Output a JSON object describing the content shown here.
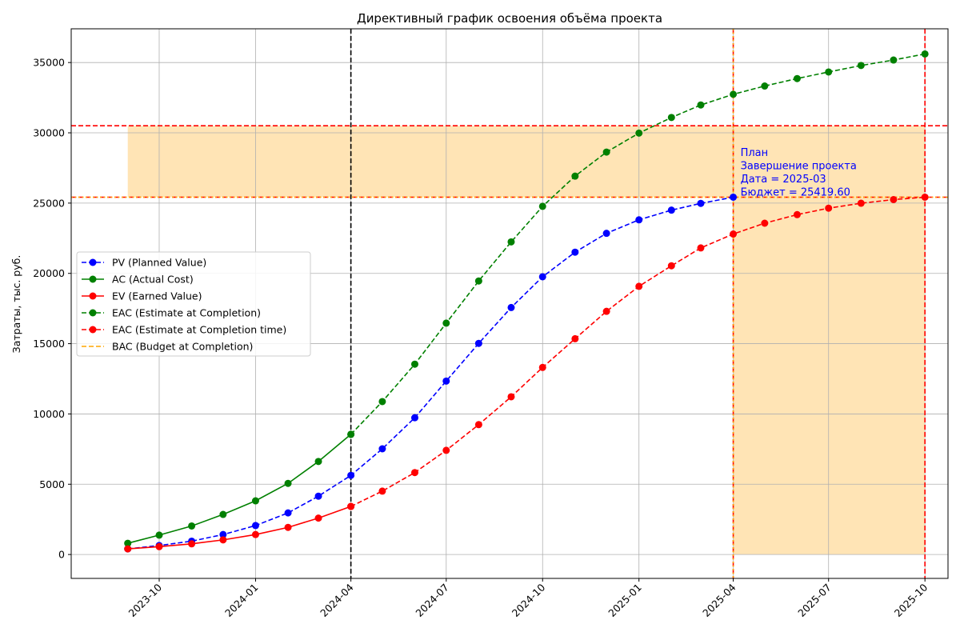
{
  "chart_data": {
    "type": "line",
    "title": "Директивный график освоения объёма проекта",
    "xlabel": "",
    "ylabel": "Затраты, тыс. руб.",
    "x_ticks": [
      "2023-10",
      "2024-01",
      "2024-04",
      "2024-07",
      "2024-10",
      "2025-01",
      "2025-04",
      "2025-07",
      "2025-10"
    ],
    "y_ticks": [
      0,
      5000,
      10000,
      15000,
      20000,
      25000,
      30000,
      35000
    ],
    "xlim": [
      "2023-07-09",
      "2025-10-23"
    ],
    "ylim": [
      -1700,
      37400
    ],
    "grid": true,
    "legend_position": "center-left",
    "series": [
      {
        "name": "PV (Planned Value)",
        "color": "#0000ff",
        "line_style": "dashed",
        "marker": "circle",
        "points": [
          [
            "2023-09",
            400
          ],
          [
            "2023-10",
            640
          ],
          [
            "2023-11",
            950
          ],
          [
            "2023-12",
            1420
          ],
          [
            "2024-01",
            2060
          ],
          [
            "2024-02",
            2960
          ],
          [
            "2024-03",
            4150
          ],
          [
            "2024-04",
            5630
          ],
          [
            "2024-05",
            7520
          ],
          [
            "2024-06",
            9730
          ],
          [
            "2024-07",
            12340
          ],
          [
            "2024-08",
            15020
          ],
          [
            "2024-09",
            17570
          ],
          [
            "2024-10",
            19760
          ],
          [
            "2024-11",
            21510
          ],
          [
            "2024-12",
            22850
          ],
          [
            "2025-01",
            23810
          ],
          [
            "2025-02",
            24500
          ],
          [
            "2025-03",
            24980
          ],
          [
            "2025-04",
            25420
          ]
        ]
      },
      {
        "name": "AC (Actual Cost)",
        "color": "#008000",
        "line_style": "solid",
        "marker": "circle",
        "points": [
          [
            "2023-09",
            800
          ],
          [
            "2023-10",
            1380
          ],
          [
            "2023-11",
            2030
          ],
          [
            "2023-12",
            2850
          ],
          [
            "2024-01",
            3820
          ],
          [
            "2024-02",
            5060
          ],
          [
            "2024-03",
            6620
          ],
          [
            "2024-04",
            8550
          ]
        ]
      },
      {
        "name": "EV (Earned Value)",
        "color": "#ff0000",
        "line_style": "solid",
        "marker": "circle",
        "points": [
          [
            "2023-09",
            400
          ],
          [
            "2023-10",
            560
          ],
          [
            "2023-11",
            760
          ],
          [
            "2023-12",
            1040
          ],
          [
            "2024-01",
            1420
          ],
          [
            "2024-02",
            1930
          ],
          [
            "2024-03",
            2590
          ],
          [
            "2024-04",
            3420
          ]
        ]
      },
      {
        "name": "EAC (Estimate at Completion)",
        "color": "#008000",
        "line_style": "dashed",
        "marker": "circle",
        "points": [
          [
            "2024-04",
            8550
          ],
          [
            "2024-05",
            10880
          ],
          [
            "2024-06",
            13540
          ],
          [
            "2024-07",
            16460
          ],
          [
            "2024-08",
            19460
          ],
          [
            "2024-09",
            22240
          ],
          [
            "2024-10",
            24770
          ],
          [
            "2024-11",
            26920
          ],
          [
            "2024-12",
            28630
          ],
          [
            "2025-01",
            29980
          ],
          [
            "2025-02",
            31090
          ],
          [
            "2025-03",
            31980
          ],
          [
            "2025-04",
            32740
          ],
          [
            "2025-05",
            33330
          ],
          [
            "2025-06",
            33860
          ],
          [
            "2025-07",
            34330
          ],
          [
            "2025-08",
            34790
          ],
          [
            "2025-09",
            35180
          ],
          [
            "2025-10",
            35610
          ]
        ]
      },
      {
        "name": "EAC (Estimate at Completion time)",
        "color": "#ff0000",
        "line_style": "dashed",
        "marker": "circle",
        "points": [
          [
            "2024-04",
            3420
          ],
          [
            "2024-05",
            4510
          ],
          [
            "2024-06",
            5830
          ],
          [
            "2024-07",
            7410
          ],
          [
            "2024-08",
            9240
          ],
          [
            "2024-09",
            11220
          ],
          [
            "2024-10",
            13310
          ],
          [
            "2024-11",
            15350
          ],
          [
            "2024-12",
            17300
          ],
          [
            "2025-01",
            19080
          ],
          [
            "2025-02",
            20540
          ],
          [
            "2025-03",
            21810
          ],
          [
            "2025-04",
            22800
          ],
          [
            "2025-05",
            23570
          ],
          [
            "2025-06",
            24180
          ],
          [
            "2025-07",
            24640
          ],
          [
            "2025-08",
            24990
          ],
          [
            "2025-09",
            25250
          ],
          [
            "2025-10",
            25420
          ]
        ]
      },
      {
        "name": "BAC (Budget at Completion)",
        "color": "#ffa500",
        "line_style": "dashed",
        "marker": "none",
        "y": 25420
      }
    ],
    "reference_lines": {
      "status_date_vertical": {
        "x": "2024-04",
        "color": "#000000",
        "style": "dashed"
      },
      "plan_end_vertical": {
        "x": "2025-04",
        "color": "#ff0000",
        "style": "dashed"
      },
      "plan_end_vertical_dotted": {
        "x": "2025-04",
        "color": "#ffa500",
        "style": "dotted"
      },
      "forecast_end_vertical": {
        "x": "2025-10",
        "color": "#ff0000",
        "style": "dashed"
      },
      "eac_budget_horizontal": {
        "y": 30500,
        "color": "#ff0000",
        "style": "dashed"
      },
      "bac_horizontal_red": {
        "y": 25420,
        "color": "#ff0000",
        "style": "dashed"
      },
      "bac_horizontal_orange": {
        "y": 25420,
        "color": "#ffa500",
        "style": "dotted"
      }
    },
    "shaded_regions": [
      {
        "x_from": "2023-09",
        "x_to": "2025-10",
        "y_from": 25420,
        "y_to": 30500,
        "color": "#ffe4b5"
      },
      {
        "x_from": "2025-04",
        "x_to": "2025-10",
        "y_from": 0,
        "y_to": 25420,
        "color": "#ffe4b5"
      }
    ],
    "annotation": {
      "anchor_x": "2025-04",
      "anchor_y": 25420,
      "lines": [
        "План",
        "Завершение проекта",
        "Дата = 2025-03",
        "Бюджет = 25419.60"
      ],
      "color": "#0000ff"
    }
  }
}
